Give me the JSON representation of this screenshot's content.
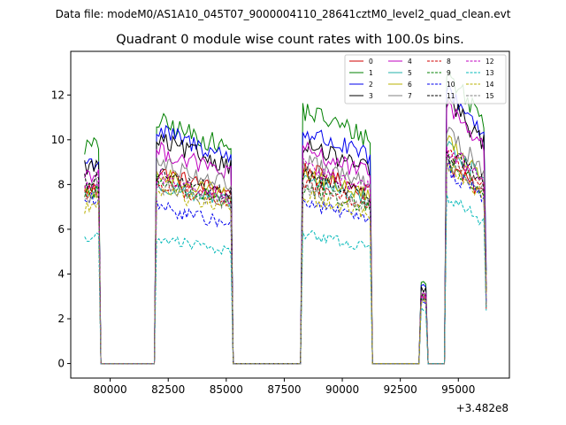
{
  "header": "Data file: modeM0/AS1A10_045T07_9000004110_28641cztM0_level2_quad_clean.evt",
  "chart_data": {
    "type": "line",
    "title": "Quadrant 0 module wise count rates with 100.0s bins.",
    "xlabel": "",
    "ylabel": "",
    "x_offset_label": "+3.482e8",
    "xlim": [
      78300,
      97200
    ],
    "ylim": [
      -0.65,
      13.95
    ],
    "x_ticks": [
      80000,
      82500,
      85000,
      87500,
      90000,
      92500,
      95000
    ],
    "x_tick_labels": [
      "80000",
      "82500",
      "85000",
      "87500",
      "90000",
      "92500",
      "95000"
    ],
    "y_ticks": [
      0,
      2,
      4,
      6,
      8,
      10,
      12
    ],
    "y_tick_labels": [
      "0",
      "2",
      "4",
      "6",
      "8",
      "10",
      "12"
    ],
    "segments": [
      {
        "start": 78900,
        "end": 79500
      },
      {
        "start": 82000,
        "end": 85200
      },
      {
        "start": 88300,
        "end": 91200
      },
      {
        "start": 93400,
        "end": 93600
      },
      {
        "start": 94500,
        "end": 96100
      }
    ],
    "legend_position": "upper right",
    "series": [
      {
        "name": "0",
        "color": "#d00000",
        "dash": "solid",
        "levels": [
          7.8,
          8.1,
          8.2,
          3.0,
          8.0
        ]
      },
      {
        "name": "1",
        "color": "#008000",
        "dash": "solid",
        "levels": [
          9.7,
          10.2,
          10.7,
          3.6,
          11.6
        ]
      },
      {
        "name": "2",
        "color": "#0000ee",
        "dash": "solid",
        "levels": [
          9.0,
          9.8,
          9.8,
          3.4,
          11.0
        ]
      },
      {
        "name": "3",
        "color": "#000000",
        "dash": "solid",
        "levels": [
          8.8,
          9.4,
          9.2,
          3.3,
          10.5
        ]
      },
      {
        "name": "4",
        "color": "#c000c0",
        "dash": "solid",
        "levels": [
          8.5,
          9.0,
          9.0,
          3.2,
          10.3
        ]
      },
      {
        "name": "5",
        "color": "#20b2aa",
        "dash": "solid",
        "levels": [
          7.6,
          7.6,
          7.8,
          2.9,
          8.7
        ]
      },
      {
        "name": "6",
        "color": "#b8b000",
        "dash": "solid",
        "levels": [
          7.5,
          8.0,
          8.0,
          3.0,
          8.9
        ]
      },
      {
        "name": "7",
        "color": "#808080",
        "dash": "solid",
        "levels": [
          8.0,
          8.5,
          8.5,
          3.1,
          9.2
        ]
      },
      {
        "name": "8",
        "color": "#d00000",
        "dash": "dashed",
        "levels": [
          7.6,
          7.6,
          7.6,
          2.9,
          8.3
        ]
      },
      {
        "name": "9",
        "color": "#008000",
        "dash": "dashed",
        "levels": [
          7.7,
          7.7,
          7.4,
          2.9,
          8.1
        ]
      },
      {
        "name": "10",
        "color": "#0000ee",
        "dash": "dashed",
        "levels": [
          7.3,
          6.6,
          6.8,
          2.7,
          7.8
        ]
      },
      {
        "name": "11",
        "color": "#000000",
        "dash": "dashed",
        "levels": [
          8.2,
          8.0,
          8.0,
          3.0,
          8.5
        ]
      },
      {
        "name": "12",
        "color": "#c000c0",
        "dash": "dashed",
        "levels": [
          8.0,
          7.9,
          8.3,
          3.0,
          8.6
        ]
      },
      {
        "name": "13",
        "color": "#00b8b8",
        "dash": "dashed",
        "levels": [
          5.6,
          5.3,
          5.5,
          2.4,
          6.7
        ]
      },
      {
        "name": "14",
        "color": "#b8b000",
        "dash": "dashed",
        "levels": [
          7.0,
          7.3,
          7.1,
          2.8,
          8.0
        ]
      },
      {
        "name": "15",
        "color": "#808080",
        "dash": "dashed",
        "levels": [
          7.4,
          7.5,
          7.4,
          2.8,
          8.0
        ]
      }
    ]
  }
}
